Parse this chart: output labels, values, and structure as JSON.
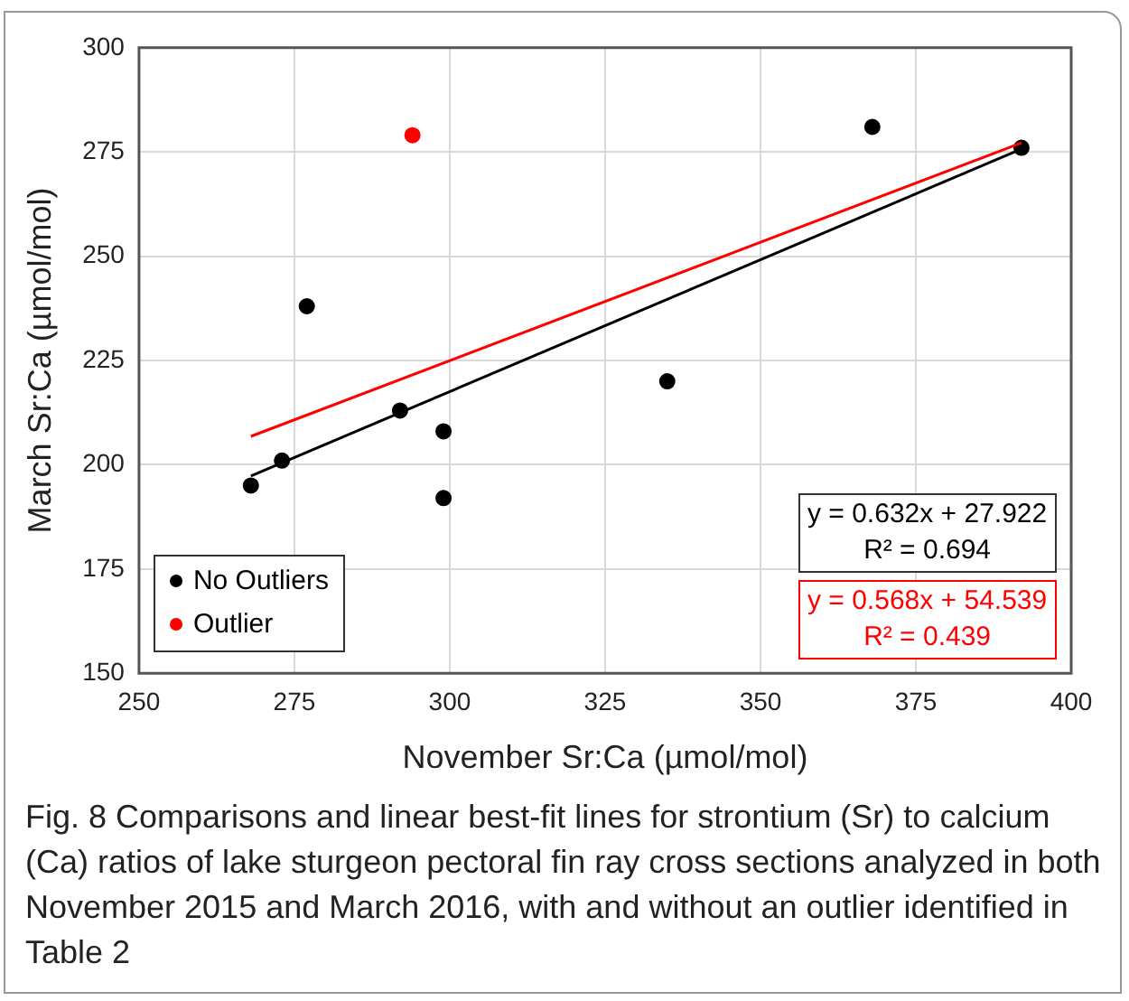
{
  "chart_data": {
    "type": "scatter",
    "xlabel": "November Sr:Ca (µmol/mol)",
    "ylabel": "March Sr:Ca (µmol/mol)",
    "xlim": [
      250,
      400
    ],
    "xticks": [
      250,
      275,
      300,
      325,
      350,
      375,
      400
    ],
    "ylim": [
      150,
      300
    ],
    "yticks": [
      150,
      175,
      200,
      225,
      250,
      275,
      300
    ],
    "grid": true,
    "legend": "bottom left",
    "marker": "circle",
    "series": [
      {
        "name": "No Outliers",
        "color": "#000000",
        "x": [
          268,
          273,
          292,
          299,
          299,
          335,
          277,
          368,
          392
        ],
        "values": [
          195,
          201,
          213,
          208,
          192,
          220,
          238,
          281,
          276
        ]
      },
      {
        "name": "Outlier",
        "color": "#ff0000",
        "x": [
          294
        ],
        "values": [
          279
        ]
      },
      {
        "type": "line",
        "color": "#000000",
        "marker": "none",
        "x": [
          268,
          392
        ],
        "values": [
          197.3,
          275.7
        ]
      },
      {
        "type": "line",
        "color": "#ff0000",
        "marker": "none",
        "x": [
          268,
          392
        ],
        "values": [
          206.8,
          277.2
        ]
      }
    ],
    "annotations": [
      "y = 0.632x + 27.922\nR² = 0.694",
      "y = 0.568x + 54.539\nR² = 0.439",
      "Fig. 8  Comparisons and linear best-fit lines for strontium (Sr) to calcium (Ca) ratios of lake sturgeon pectoral fin ray cross sections analyzed in both November 2015 and March 2016, with and without an outlier identified in Table 2"
    ]
  }
}
